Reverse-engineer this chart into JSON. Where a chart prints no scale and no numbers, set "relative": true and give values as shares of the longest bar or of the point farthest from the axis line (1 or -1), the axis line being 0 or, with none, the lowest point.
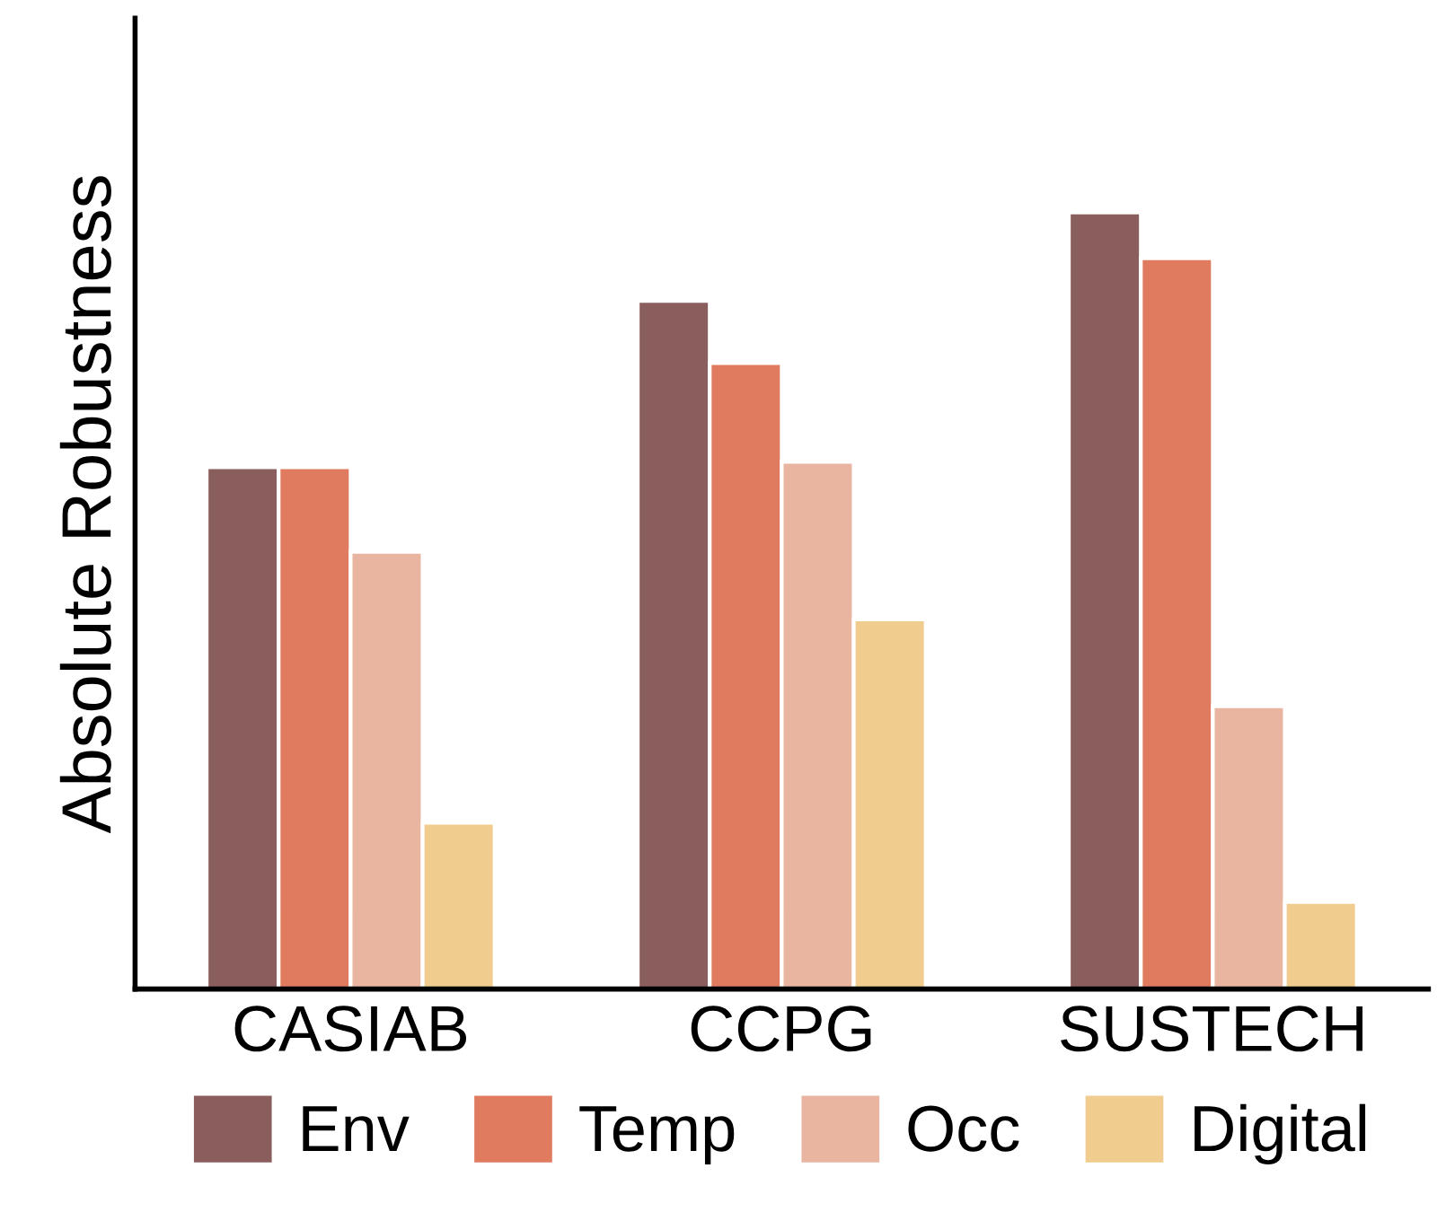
{
  "chart_data": {
    "type": "bar",
    "relative": true,
    "ylabel": "Absolute Robustness",
    "categories": [
      "CASIAB",
      "CCPG",
      "SUSTECH"
    ],
    "series": [
      {
        "name": "Env",
        "color": "#8b5e5e",
        "values": [
          0.672,
          0.886,
          1.0
        ]
      },
      {
        "name": "Temp",
        "color": "#e07b5f",
        "values": [
          0.672,
          0.806,
          0.941
        ]
      },
      {
        "name": "Occ",
        "color": "#eab5a0",
        "values": [
          0.563,
          0.679,
          0.364
        ]
      },
      {
        "name": "Digital",
        "color": "#f0cd8f",
        "values": [
          0.214,
          0.476,
          0.112
        ]
      }
    ],
    "legend": "bottom",
    "grid": false
  }
}
